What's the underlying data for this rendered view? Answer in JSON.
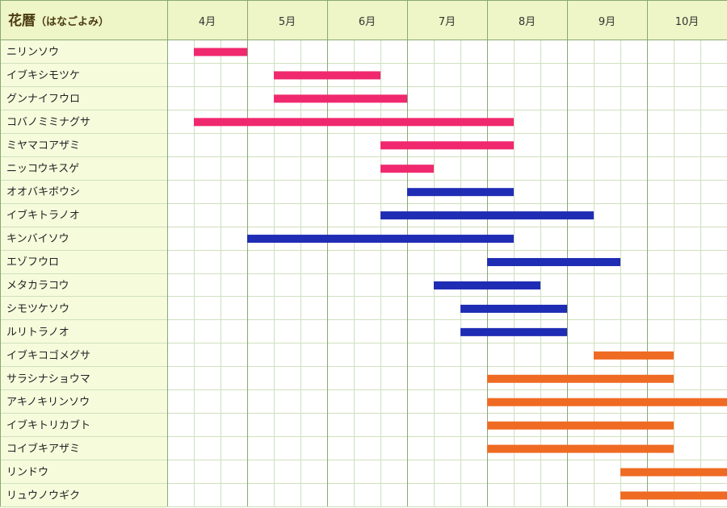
{
  "header": {
    "title": "花暦",
    "subtitle": "（はなごよみ）"
  },
  "colors": {
    "header_bg": "#eef5c6",
    "label_bg": "#f6fbdc",
    "grid_major": "#8aa870",
    "grid_minor": "#cfe0bf",
    "pink": "#f0286e",
    "blue": "#1f2cb4",
    "orange": "#ef6a22"
  },
  "chart_data": {
    "type": "gantt",
    "months": [
      "4月",
      "5月",
      "6月",
      "7月",
      "8月",
      "9月",
      "10月"
    ],
    "month_values": [
      4,
      5,
      6,
      7,
      8,
      9,
      10
    ],
    "x_range": [
      4,
      11
    ],
    "x_subdivision": "thirds of a month",
    "grid": true,
    "rows": [
      {
        "name": "ニリンソウ",
        "start": 4.333,
        "end": 5.0,
        "color": "pink"
      },
      {
        "name": "イブキシモツケ",
        "start": 5.333,
        "end": 6.667,
        "color": "pink"
      },
      {
        "name": "グンナイフウロ",
        "start": 5.333,
        "end": 7.0,
        "color": "pink"
      },
      {
        "name": "コバノミミナグサ",
        "start": 4.333,
        "end": 8.333,
        "color": "pink"
      },
      {
        "name": "ミヤマコアザミ",
        "start": 6.667,
        "end": 8.333,
        "color": "pink"
      },
      {
        "name": "ニッコウキスゲ",
        "start": 6.667,
        "end": 7.333,
        "color": "pink"
      },
      {
        "name": "オオバキボウシ",
        "start": 7.0,
        "end": 8.333,
        "color": "blue"
      },
      {
        "name": "イブキトラノオ",
        "start": 6.667,
        "end": 9.333,
        "color": "blue"
      },
      {
        "name": "キンバイソウ",
        "start": 5.0,
        "end": 8.333,
        "color": "blue"
      },
      {
        "name": "エゾフウロ",
        "start": 8.0,
        "end": 9.667,
        "color": "blue"
      },
      {
        "name": "メタカラコウ",
        "start": 7.333,
        "end": 8.667,
        "color": "blue"
      },
      {
        "name": "シモツケソウ",
        "start": 7.667,
        "end": 9.0,
        "color": "blue"
      },
      {
        "name": "ルリトラノオ",
        "start": 7.667,
        "end": 9.0,
        "color": "blue"
      },
      {
        "name": "イブキコゴメグサ",
        "start": 9.333,
        "end": 10.333,
        "color": "orange"
      },
      {
        "name": "サラシナショウマ",
        "start": 8.0,
        "end": 10.333,
        "color": "orange"
      },
      {
        "name": "アキノキリンソウ",
        "start": 8.0,
        "end": 11.0,
        "color": "orange"
      },
      {
        "name": "イブキトリカブト",
        "start": 8.0,
        "end": 10.333,
        "color": "orange"
      },
      {
        "name": "コイブキアザミ",
        "start": 8.0,
        "end": 10.333,
        "color": "orange"
      },
      {
        "name": "リンドウ",
        "start": 9.667,
        "end": 11.0,
        "color": "orange"
      },
      {
        "name": "リュウノウギク",
        "start": 9.667,
        "end": 11.0,
        "color": "orange"
      }
    ]
  }
}
